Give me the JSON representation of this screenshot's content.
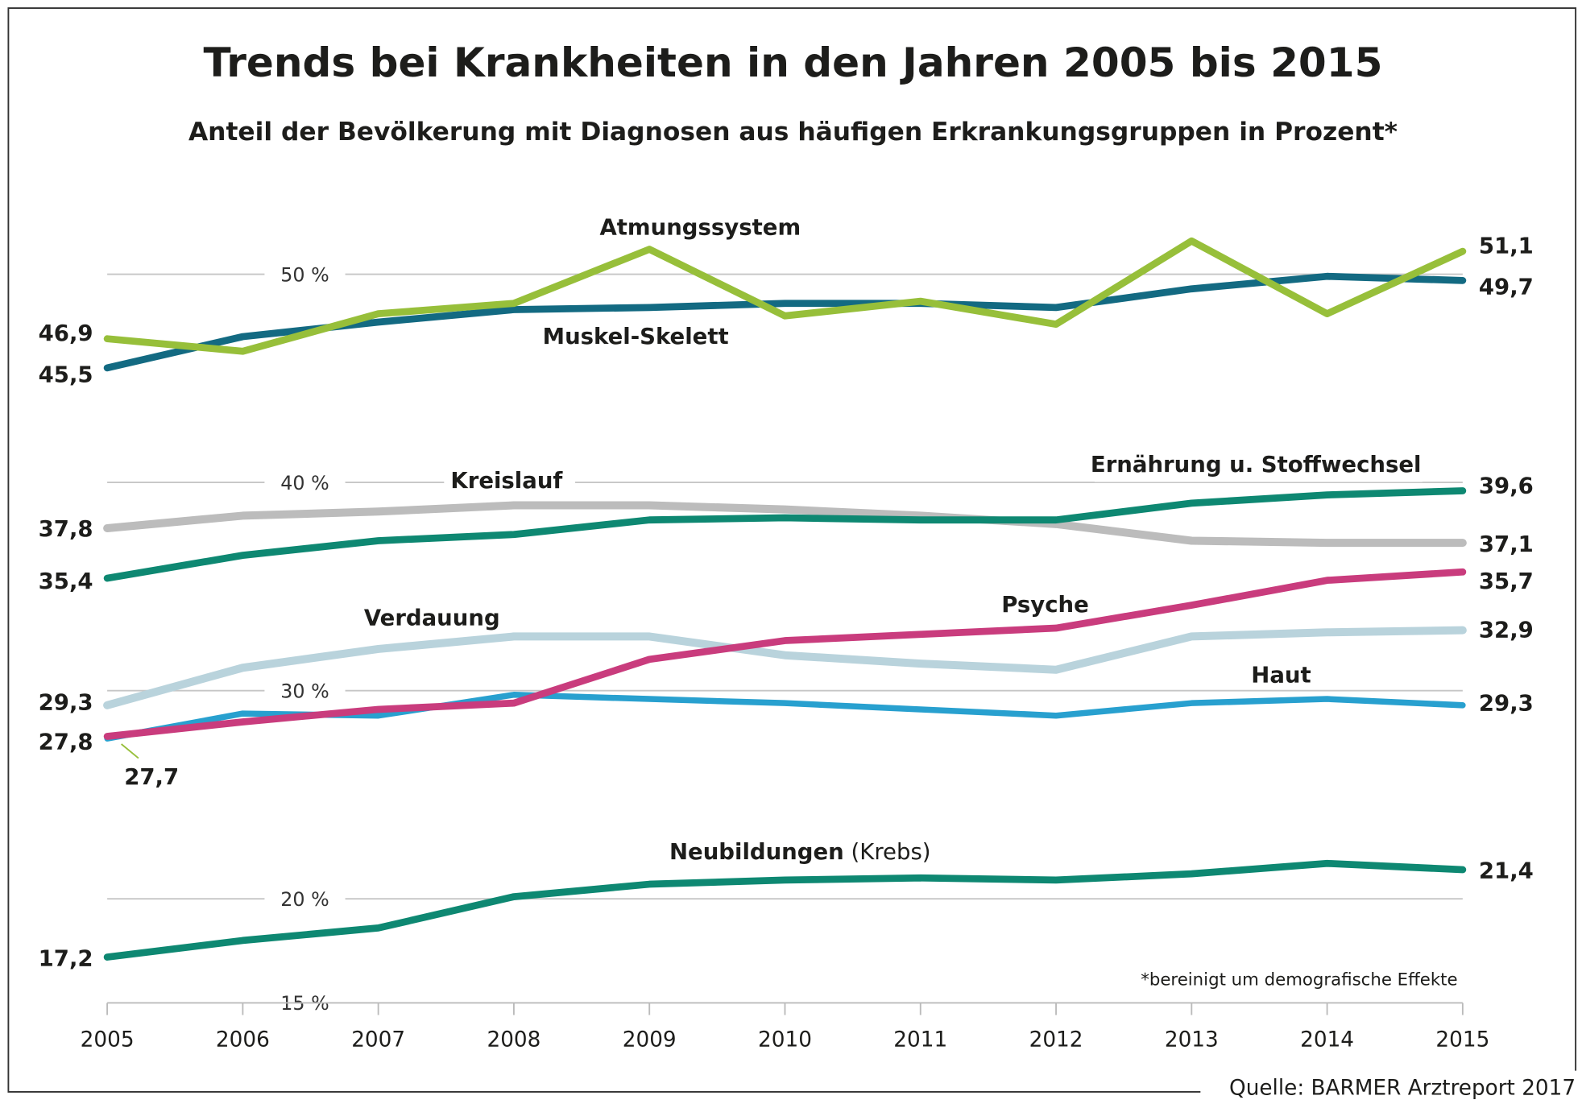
{
  "chart_data": {
    "type": "line",
    "title": "Trends bei Krankheiten in den Jahren 2005 bis 2015",
    "subtitle": "Anteil der Bevölkerung mit Diagnosen aus häufigen Erkrankungsgruppen in Prozent*",
    "x": [
      2005,
      2006,
      2007,
      2008,
      2009,
      2010,
      2011,
      2012,
      2013,
      2014,
      2015
    ],
    "x_tick_labels": [
      "2005",
      "2006",
      "2007",
      "2008",
      "2009",
      "2010",
      "2011",
      "2012",
      "2013",
      "2014",
      "2015"
    ],
    "y_ticks": [
      15,
      20,
      30,
      40,
      50
    ],
    "y_tick_labels": [
      "15 %",
      "20 %",
      "30 %",
      "40 %",
      "50 %"
    ],
    "ylim": [
      15,
      53
    ],
    "grid": true,
    "legend": "none (labels inline)",
    "series": [
      {
        "name": "Verdauung",
        "color": "#b9d3dc",
        "values": [
          29.3,
          31.1,
          32.0,
          32.6,
          32.6,
          31.7,
          31.3,
          31.0,
          32.6,
          32.8,
          32.9
        ],
        "start_label": "29,3",
        "end_label": "32,9"
      },
      {
        "name": "Haut",
        "color": "#28a0cf",
        "values": [
          27.7,
          28.9,
          28.8,
          29.8,
          29.6,
          29.4,
          29.1,
          28.8,
          29.4,
          29.6,
          29.3
        ],
        "start_label": "27,7",
        "end_label": "29,3"
      },
      {
        "name": "Psyche",
        "color": "#c93c7d",
        "values": [
          27.8,
          28.5,
          29.1,
          29.4,
          31.5,
          32.4,
          32.7,
          33.0,
          34.1,
          35.3,
          35.7
        ],
        "start_label": "27,8",
        "end_label": "35,7"
      },
      {
        "name": "Kreislauf",
        "color": "#bcbcbc",
        "values": [
          37.8,
          38.4,
          38.6,
          38.9,
          38.9,
          38.7,
          38.4,
          38.0,
          37.2,
          37.1,
          37.1
        ],
        "start_label": "37,8",
        "end_label": "37,1"
      },
      {
        "name": "Ernährung u. Stoffwechsel",
        "color": "#0e8872",
        "values": [
          35.4,
          36.5,
          37.2,
          37.5,
          38.2,
          38.3,
          38.2,
          38.2,
          39.0,
          39.4,
          39.6
        ],
        "start_label": "35,4",
        "end_label": "39,6"
      },
      {
        "name": "Muskel-Skelett",
        "color": "#136a82",
        "values": [
          45.5,
          47.0,
          47.7,
          48.3,
          48.4,
          48.6,
          48.6,
          48.4,
          49.3,
          49.9,
          49.7
        ],
        "start_label": "45,5",
        "end_label": "49,7"
      },
      {
        "name": "Atmungssystem",
        "color": "#97bf3a",
        "values": [
          46.9,
          46.3,
          48.1,
          48.6,
          51.2,
          48.0,
          48.7,
          47.6,
          51.6,
          48.1,
          51.1
        ],
        "start_label": "46,9",
        "end_label": "51,1"
      },
      {
        "name": "Neubildungen",
        "name_suffix": "(Krebs)",
        "color": "#0e8872",
        "values": [
          17.2,
          18.0,
          18.6,
          20.1,
          20.7,
          20.9,
          21.0,
          20.9,
          21.2,
          21.7,
          21.4
        ],
        "start_label": "17,2",
        "end_label": "21,4"
      }
    ],
    "footnote": "*bereinigt um demografische Effekte",
    "source": "Quelle: BARMER Arztreport 2017"
  }
}
